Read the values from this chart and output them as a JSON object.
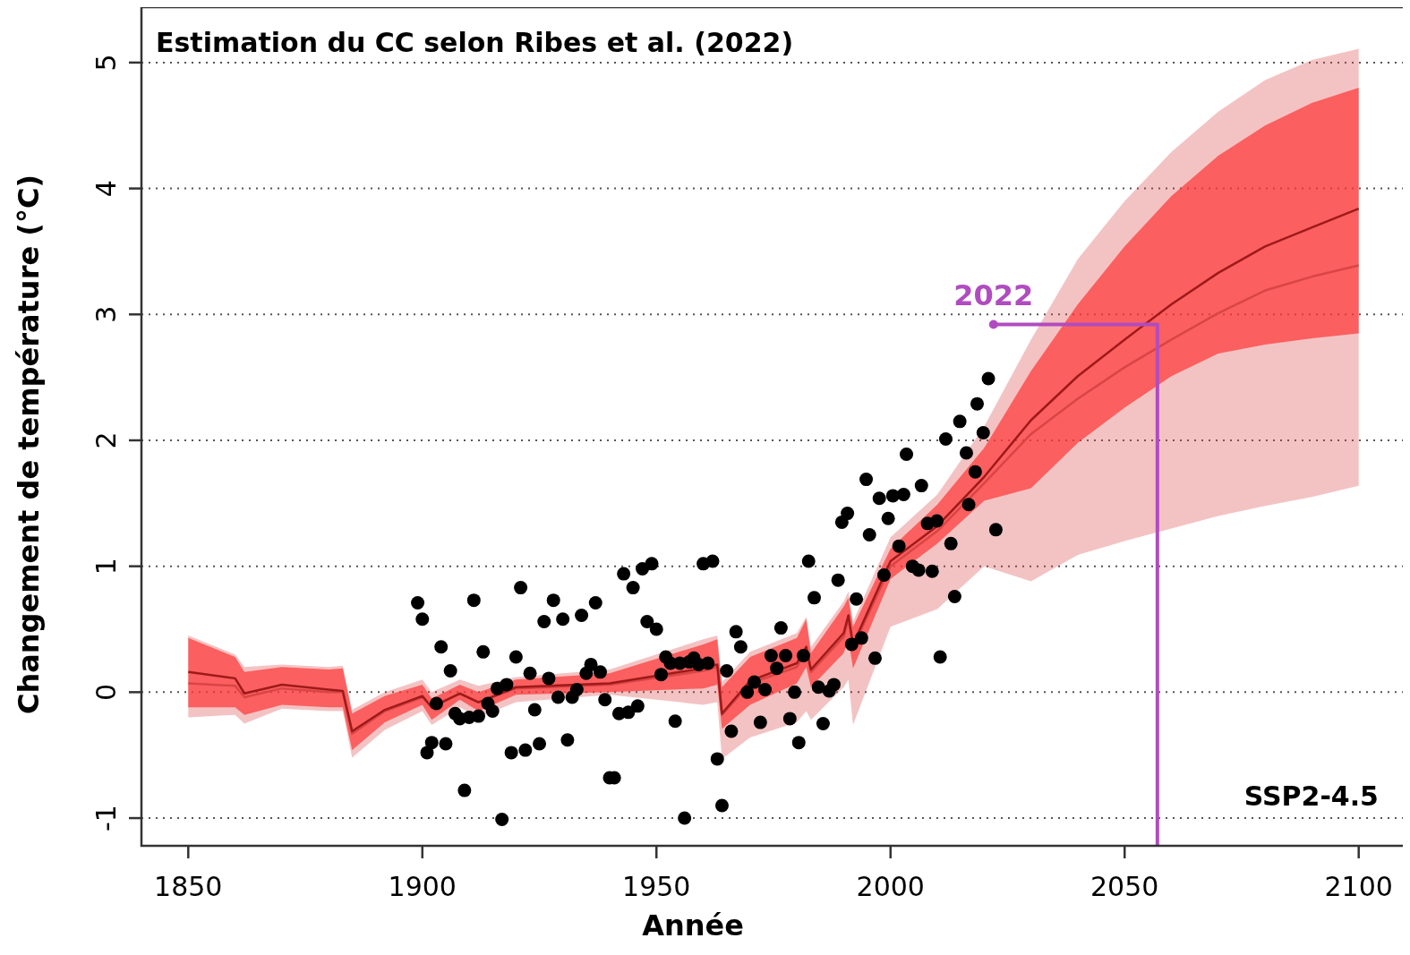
{
  "chart_data": {
    "type": "line",
    "title": "Estimation du CC selon Ribes et al. (2022)",
    "xlabel": "Année",
    "ylabel": "Changement de température (°C)",
    "xlim": [
      1840,
      2110
    ],
    "ylim": [
      -1.22,
      5.44
    ],
    "xticks": [
      1850,
      1900,
      1950,
      2000,
      2050,
      2100
    ],
    "yticks": [
      -1,
      0,
      1,
      2,
      3,
      4,
      5
    ],
    "grid": "y",
    "annotations": [
      "SSP2-4.5"
    ],
    "series": [
      {
        "color": "#d94545",
        "x": [
          1850,
          1860,
          1862,
          1870,
          1880,
          1883,
          1885,
          1892,
          1900,
          1902,
          1908,
          1912,
          1920,
          1940,
          1960,
          1963,
          1964,
          1970,
          1980,
          1982,
          1983,
          1990,
          1991,
          1992,
          2000,
          2010,
          2020,
          2030,
          2040,
          2050,
          2060,
          2070,
          2080,
          2090,
          2100
        ],
        "values": [
          0.07,
          0.05,
          -0.04,
          0.03,
          0.0,
          0.0,
          -0.33,
          -0.15,
          -0.04,
          -0.12,
          -0.01,
          -0.08,
          0.03,
          0.06,
          0.17,
          0.2,
          -0.18,
          0.07,
          0.2,
          0.33,
          0.16,
          0.44,
          0.58,
          0.36,
          1.0,
          1.28,
          1.66,
          2.05,
          2.33,
          2.58,
          2.8,
          3.01,
          3.19,
          3.3,
          3.39
        ],
        "lower": [
          -0.2,
          -0.18,
          -0.25,
          -0.13,
          -0.15,
          -0.15,
          -0.52,
          -0.3,
          -0.15,
          -0.26,
          -0.12,
          -0.2,
          -0.08,
          -0.02,
          -0.1,
          -0.08,
          -0.53,
          -0.36,
          -0.24,
          -0.15,
          -0.22,
          0.04,
          0.1,
          -0.26,
          0.52,
          0.66,
          1.0,
          0.88,
          1.09,
          1.2,
          1.3,
          1.4,
          1.48,
          1.55,
          1.64
        ],
        "upper": [
          0.45,
          0.3,
          0.2,
          0.22,
          0.2,
          0.21,
          -0.14,
          0.0,
          0.1,
          0.0,
          0.1,
          0.05,
          0.12,
          0.18,
          0.42,
          0.45,
          0.08,
          0.32,
          0.47,
          0.6,
          0.36,
          0.72,
          0.8,
          0.56,
          1.23,
          1.57,
          2.11,
          2.8,
          3.44,
          3.9,
          4.29,
          4.61,
          4.86,
          5.02,
          5.11
        ]
      },
      {
        "color": "#9e1a1a",
        "x": [
          1850,
          1860,
          1862,
          1870,
          1880,
          1883,
          1885,
          1892,
          1900,
          1902,
          1908,
          1912,
          1920,
          1940,
          1960,
          1963,
          1964,
          1970,
          1980,
          1982,
          1983,
          1990,
          1991,
          1992,
          2000,
          2010,
          2020,
          2030,
          2040,
          2050,
          2060,
          2070,
          2080,
          2090,
          2100
        ],
        "values": [
          0.16,
          0.11,
          -0.01,
          0.06,
          0.02,
          0.01,
          -0.31,
          -0.14,
          -0.03,
          -0.12,
          -0.01,
          -0.08,
          0.04,
          0.07,
          0.19,
          0.22,
          -0.17,
          0.09,
          0.23,
          0.36,
          0.18,
          0.47,
          0.61,
          0.38,
          1.04,
          1.32,
          1.71,
          2.16,
          2.51,
          2.8,
          3.08,
          3.33,
          3.54,
          3.69,
          3.84
        ],
        "lower": [
          -0.12,
          -0.12,
          -0.18,
          -0.1,
          -0.12,
          -0.12,
          -0.46,
          -0.24,
          -0.1,
          -0.22,
          -0.06,
          -0.15,
          -0.02,
          0.0,
          0.03,
          0.06,
          -0.29,
          -0.1,
          0.07,
          0.2,
          0.04,
          0.31,
          0.42,
          0.19,
          0.9,
          1.18,
          1.52,
          1.62,
          1.98,
          2.26,
          2.51,
          2.69,
          2.76,
          2.81,
          2.85
        ],
        "upper": [
          0.43,
          0.28,
          0.16,
          0.2,
          0.18,
          0.19,
          -0.17,
          -0.03,
          0.06,
          -0.05,
          0.06,
          0.0,
          0.1,
          0.15,
          0.38,
          0.42,
          0.04,
          0.28,
          0.43,
          0.58,
          0.31,
          0.68,
          0.75,
          0.52,
          1.14,
          1.49,
          1.94,
          2.55,
          3.08,
          3.54,
          3.94,
          4.26,
          4.5,
          4.68,
          4.8
        ]
      },
      {
        "type": "scatter",
        "color": "#000000",
        "marker": "circle",
        "x": [
          1899,
          1900,
          1901,
          1902,
          1903,
          1904,
          1905,
          1906,
          1907,
          1908,
          1909,
          1910,
          1911,
          1912,
          1913,
          1914,
          1915,
          1916,
          1917,
          1918,
          1919,
          1920,
          1921,
          1922,
          1923,
          1924,
          1925,
          1926,
          1927,
          1928,
          1929,
          1930,
          1931,
          1932,
          1933,
          1934,
          1935,
          1936,
          1937,
          1938,
          1939,
          1940,
          1941,
          1942,
          1943,
          1944,
          1945,
          1946,
          1947,
          1948,
          1949,
          1950,
          1951,
          1952,
          1953,
          1954,
          1955,
          1956,
          1957,
          1958,
          1959,
          1960,
          1961,
          1962,
          1963,
          1964,
          1965,
          1966,
          1967,
          1968,
          1969.4,
          1970.9,
          1972.2,
          1973.2,
          1974.5,
          1975.7,
          1976.6,
          1977.6,
          1978.5,
          1979.5,
          1980.4,
          1981.4,
          1982.5,
          1983.7,
          1984.6,
          1985.6,
          1986.9,
          1987.9,
          1988.8,
          1989.6,
          1990.8,
          1991.7,
          1992.7,
          1993.8,
          1994.8,
          1995.5,
          1996.7,
          1997.6,
          1998.6,
          1999.5,
          2000.5,
          2001.8,
          2002.8,
          2003.4,
          2004.7,
          2006.0,
          2006.6,
          2007.9,
          2008.9,
          2009.9,
          2010.6,
          2011.8,
          2012.9,
          2013.7,
          2014.8,
          2016.2,
          2016.7,
          2018.1,
          2018.5,
          2019.8,
          2020.9,
          2022.5
        ],
        "values": [
          0.71,
          0.58,
          -0.48,
          -0.4,
          -0.09,
          0.36,
          -0.41,
          0.17,
          -0.17,
          -0.21,
          -0.78,
          -0.2,
          0.73,
          -0.19,
          0.32,
          -0.09,
          -0.15,
          0.03,
          -1.01,
          0.06,
          -0.48,
          0.28,
          0.83,
          -0.46,
          0.15,
          -0.14,
          -0.41,
          0.56,
          0.11,
          0.73,
          -0.04,
          0.58,
          -0.38,
          -0.04,
          0.02,
          0.61,
          0.15,
          0.22,
          0.71,
          0.16,
          -0.06,
          -0.68,
          -0.68,
          -0.17,
          0.94,
          -0.16,
          0.83,
          -0.11,
          0.98,
          0.56,
          1.02,
          0.5,
          0.14,
          0.28,
          0.23,
          -0.23,
          0.23,
          -1.0,
          0.24,
          0.27,
          0.22,
          1.02,
          0.23,
          1.04,
          -0.53,
          -0.9,
          0.17,
          -0.31,
          0.48,
          0.36,
          0.0,
          0.08,
          -0.24,
          0.02,
          0.29,
          0.19,
          0.51,
          0.29,
          -0.21,
          0.0,
          -0.4,
          0.29,
          1.04,
          0.75,
          0.04,
          -0.25,
          0.01,
          0.06,
          0.89,
          1.35,
          1.42,
          0.38,
          0.74,
          0.43,
          1.69,
          1.25,
          0.27,
          1.54,
          0.93,
          1.38,
          1.56,
          1.16,
          1.57,
          1.89,
          1.0,
          0.97,
          1.64,
          1.34,
          0.96,
          1.36,
          0.28,
          2.01,
          1.18,
          0.76,
          2.15,
          1.9,
          1.49,
          1.75,
          2.29,
          2.06,
          2.49,
          1.29
        ]
      },
      {
        "type": "line",
        "name": "2022",
        "color": "#b04cc0",
        "marker": "none",
        "x": [
          2022,
          2057,
          2057
        ],
        "values": [
          2.92,
          2.92,
          -1.22
        ]
      }
    ]
  }
}
